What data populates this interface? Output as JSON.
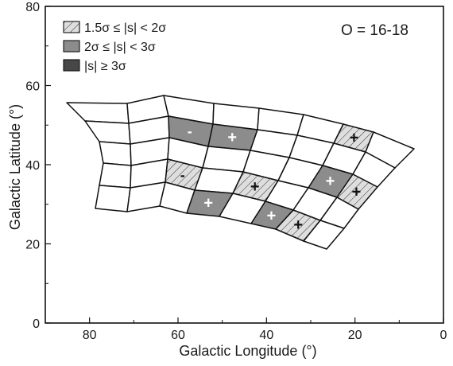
{
  "chart_data": {
    "type": "heatmap",
    "title": "",
    "annotation": "O = 16-18",
    "xlabel": "Galactic Longitude (°)",
    "ylabel": "Galactic Latitude (°)",
    "xlim": [
      90,
      0
    ],
    "ylim": [
      0,
      80
    ],
    "x_ticks": [
      "80",
      "60",
      "40",
      "20",
      "0"
    ],
    "x_tick_values": [
      80,
      60,
      40,
      20,
      0
    ],
    "y_ticks": [
      "0",
      "20",
      "40",
      "60",
      "80"
    ],
    "y_tick_values": [
      0,
      20,
      40,
      60,
      80
    ],
    "grid": false,
    "legend_position": "top-left",
    "legend": [
      {
        "label": "1.5σ  ≤ |s| < 2σ",
        "style": "hatched"
      },
      {
        "label": "2σ ≤ |s| < 3σ",
        "style": "medium"
      },
      {
        "label": "|s| ≥ 3σ",
        "style": "dark"
      }
    ],
    "colors": {
      "hatched": "#dedede",
      "medium": "#8c8c8c",
      "dark": "#474747",
      "empty": "#ffffff"
    },
    "strips": [
      {
        "name": "strip-1",
        "lon": [
          75,
          69
        ],
        "n": 4
      },
      {
        "name": "strip-2",
        "lon": [
          63,
          61
        ],
        "n": 5
      },
      {
        "name": "strip-3",
        "lon": [
          44.5,
          36.5
        ],
        "n": 6
      },
      {
        "name": "strip-4",
        "lon": [
          25,
          6
        ],
        "n": 6
      }
    ],
    "significant_cells": [
      {
        "lon": 58,
        "lat": 50.2,
        "level": "medium",
        "sign": "-"
      },
      {
        "lon": 48,
        "lat": 47.3,
        "level": "medium",
        "sign": "+"
      },
      {
        "lon": 59,
        "lat": 38.9,
        "level": "hatched",
        "sign": "-"
      },
      {
        "lon": 44,
        "lat": 34.7,
        "level": "hatched",
        "sign": "+"
      },
      {
        "lon": 52,
        "lat": 30.4,
        "level": "medium",
        "sign": "+"
      },
      {
        "lon": 27,
        "lat": 36.5,
        "level": "medium",
        "sign": "+"
      },
      {
        "lon": 20,
        "lat": 46.8,
        "level": "hatched",
        "sign": "+"
      },
      {
        "lon": 20,
        "lat": 33.9,
        "level": "hatched",
        "sign": "+"
      },
      {
        "lon": 39,
        "lat": 28.2,
        "level": "medium",
        "sign": "+"
      },
      {
        "lon": 33,
        "lat": 25.8,
        "level": "hatched",
        "sign": "+"
      }
    ]
  }
}
